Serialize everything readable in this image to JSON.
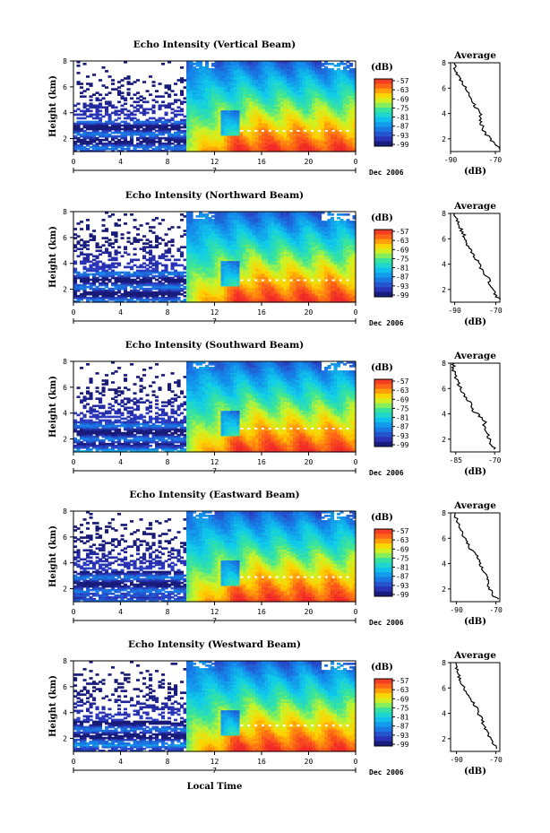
{
  "chart_data": {
    "type": "heatmap",
    "x_axis": {
      "label": "Local Time",
      "range": [
        0,
        24
      ],
      "ticks": [
        "0",
        "4",
        "8",
        "12",
        "16",
        "20",
        "0"
      ],
      "day_marker": "7",
      "date_label": "Dec 2006"
    },
    "y_axis": {
      "label": "Height (km)",
      "range": [
        1,
        8
      ],
      "ticks": [
        "2",
        "4",
        "6",
        "8"
      ]
    },
    "colorbar": {
      "unit": "(dB)",
      "ticks": [
        "-57",
        "-63",
        "-69",
        "-75",
        "-81",
        "-87",
        "-93",
        "-99"
      ],
      "range": [
        -99,
        -57
      ]
    },
    "average_profile": {
      "title": "Average",
      "xlabel": "(dB)",
      "ylim": [
        1,
        8
      ]
    },
    "panels": [
      {
        "name": "Echo Intensity (Vertical Beam)",
        "profile_ticks": [
          "-90",
          "-70"
        ],
        "xlim": [
          -90,
          -68
        ],
        "profile": [
          [
            1.2,
            -68
          ],
          [
            1.5,
            -70
          ],
          [
            2,
            -72
          ],
          [
            2.5,
            -75
          ],
          [
            3,
            -76
          ],
          [
            3.5,
            -77
          ],
          [
            4,
            -76
          ],
          [
            4.5,
            -79
          ],
          [
            5,
            -80
          ],
          [
            5.5,
            -82
          ],
          [
            6,
            -83
          ],
          [
            6.5,
            -85
          ],
          [
            7,
            -87
          ],
          [
            7.5,
            -88
          ],
          [
            8,
            -88
          ]
        ]
      },
      {
        "name": "Echo Intensity (Northward Beam)",
        "profile_ticks": [
          "-90",
          "-70"
        ],
        "xlim": [
          -92,
          -68
        ],
        "profile": [
          [
            1.2,
            -68
          ],
          [
            1.5,
            -70
          ],
          [
            2,
            -71
          ],
          [
            2.5,
            -73
          ],
          [
            3,
            -74
          ],
          [
            3.5,
            -77
          ],
          [
            4,
            -78
          ],
          [
            4.5,
            -80
          ],
          [
            5,
            -82
          ],
          [
            5.5,
            -84
          ],
          [
            6,
            -85
          ],
          [
            6.5,
            -86
          ],
          [
            7,
            -88
          ],
          [
            7.5,
            -89
          ],
          [
            8,
            -90
          ]
        ]
      },
      {
        "name": "Echo Intensity (Southward Beam)",
        "profile_ticks": [
          "-85",
          "-70"
        ],
        "xlim": [
          -87,
          -68
        ],
        "profile": [
          [
            1.2,
            -70
          ],
          [
            1.5,
            -71
          ],
          [
            2,
            -72
          ],
          [
            2.5,
            -73
          ],
          [
            3,
            -74
          ],
          [
            3.5,
            -74
          ],
          [
            4,
            -77
          ],
          [
            4.5,
            -79
          ],
          [
            5,
            -80
          ],
          [
            5.5,
            -82
          ],
          [
            6,
            -83
          ],
          [
            6.5,
            -84
          ],
          [
            7,
            -85
          ],
          [
            7.5,
            -86
          ],
          [
            8,
            -86
          ]
        ]
      },
      {
        "name": "Echo Intensity (Eastward Beam)",
        "profile_ticks": [
          "-90",
          "-70"
        ],
        "xlim": [
          -93,
          -68
        ],
        "profile": [
          [
            1.2,
            -69
          ],
          [
            1.5,
            -72
          ],
          [
            2,
            -73
          ],
          [
            2.5,
            -74
          ],
          [
            3,
            -75
          ],
          [
            3.5,
            -77
          ],
          [
            4,
            -78
          ],
          [
            4.5,
            -79
          ],
          [
            5,
            -82
          ],
          [
            5.5,
            -84
          ],
          [
            6,
            -86
          ],
          [
            6.5,
            -87
          ],
          [
            7,
            -89
          ],
          [
            7.5,
            -90
          ],
          [
            8,
            -91
          ]
        ]
      },
      {
        "name": "Echo Intensity (Westward Beam)",
        "profile_ticks": [
          "-90",
          "-70"
        ],
        "xlim": [
          -93,
          -68
        ],
        "profile": [
          [
            1.2,
            -69
          ],
          [
            1.5,
            -71
          ],
          [
            2,
            -73
          ],
          [
            2.5,
            -74
          ],
          [
            3,
            -76
          ],
          [
            3.5,
            -77
          ],
          [
            4,
            -79
          ],
          [
            4.5,
            -80
          ],
          [
            5,
            -82
          ],
          [
            5.5,
            -84
          ],
          [
            6,
            -86
          ],
          [
            6.5,
            -88
          ],
          [
            7,
            -89
          ],
          [
            7.5,
            -90
          ],
          [
            8,
            -91
          ]
        ]
      }
    ]
  }
}
